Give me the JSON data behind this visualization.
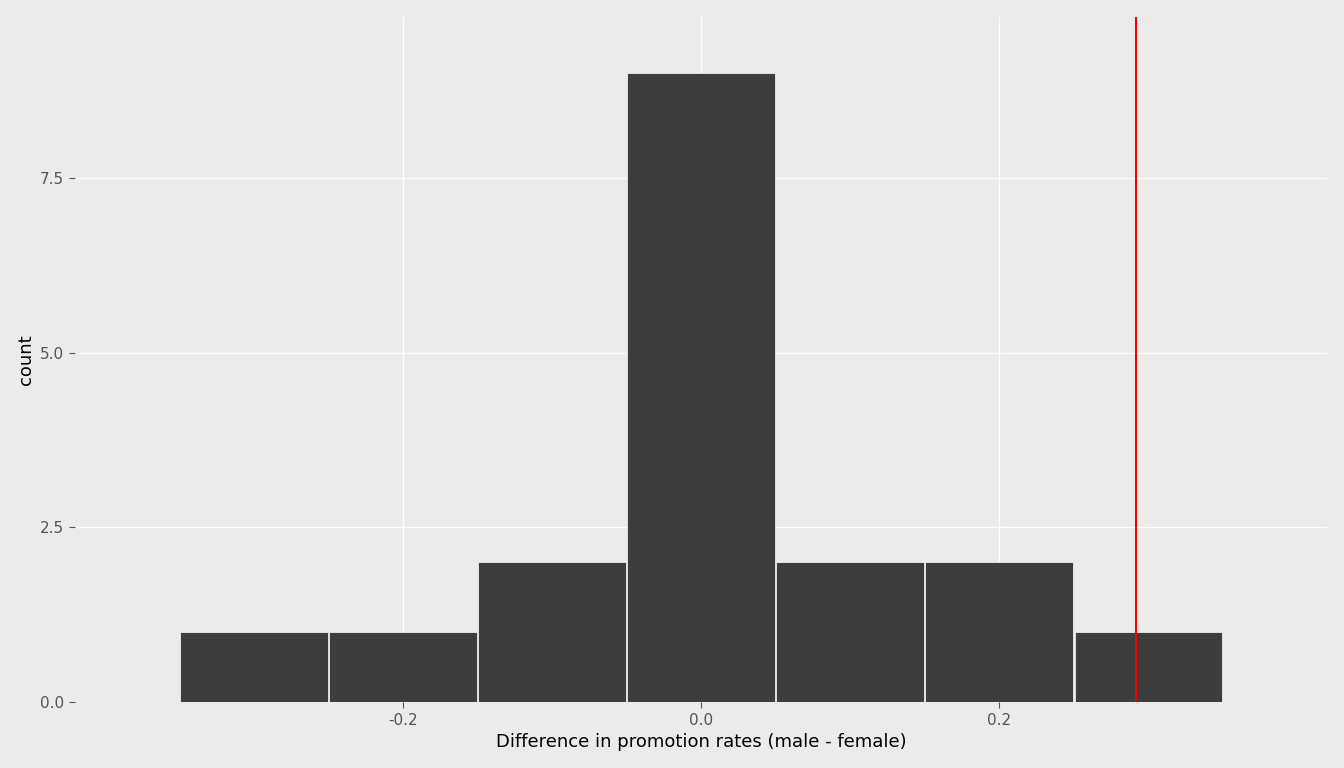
{
  "title": "",
  "xlabel": "Difference in promotion rates (male - female)",
  "ylabel": "count",
  "bar_color": "#3d3d3d",
  "background_color": "#ebebeb",
  "grid_color": "#ffffff",
  "red_line_x": 0.2917,
  "red_line_color": "#ff0000",
  "ylim": [
    0,
    9.8
  ],
  "xlim": [
    -0.42,
    0.42
  ],
  "yticks": [
    0.0,
    2.5,
    5.0,
    7.5
  ],
  "xtick_positions": [
    -0.2,
    0.0,
    0.2
  ],
  "xtick_labels": [
    "-0.2",
    "0.0",
    "0.2"
  ],
  "bin_edges": [
    -0.35,
    -0.25,
    -0.15,
    -0.05,
    0.05,
    0.15,
    0.25,
    0.35
  ],
  "bar_heights": [
    1,
    1,
    2,
    9,
    2,
    2,
    1
  ],
  "bar_width": 0.099,
  "label_fontsize": 13,
  "tick_fontsize": 11
}
